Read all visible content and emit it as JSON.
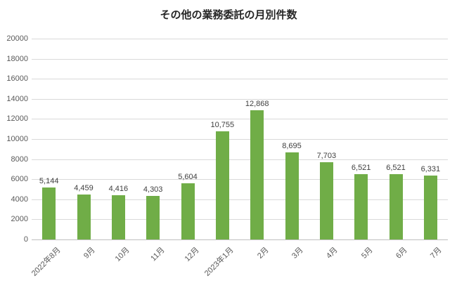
{
  "chart_data": {
    "type": "bar",
    "title": "その他の業務委託の月別件数",
    "categories": [
      "2022年8月",
      "9月",
      "10月",
      "11月",
      "12月",
      "2023年1月",
      "2月",
      "3月",
      "4月",
      "5月",
      "6月",
      "7月"
    ],
    "values": [
      5144,
      4459,
      4416,
      4303,
      5604,
      10755,
      12868,
      8695,
      7703,
      6521,
      6521,
      6331
    ],
    "value_labels": [
      "5,144",
      "4,459",
      "4,416",
      "4,303",
      "5,604",
      "10,755",
      "12,868",
      "8,695",
      "7,703",
      "6,521",
      "6,521",
      "6,331"
    ],
    "xlabel": "",
    "ylabel": "",
    "ylim": [
      0,
      20000
    ],
    "yticks": [
      0,
      2000,
      4000,
      6000,
      8000,
      10000,
      12000,
      14000,
      16000,
      18000,
      20000
    ],
    "grid": true,
    "legend": "none",
    "bar_color": "#70AD47",
    "gridline_color": "#d9d9d9",
    "axis_line_color": "#bfbfbf",
    "tick_label_color": "#595959",
    "value_label_color": "#404040",
    "title_color": "#262626"
  }
}
